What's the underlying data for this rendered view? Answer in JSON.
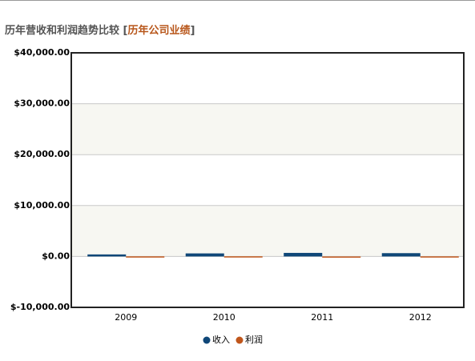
{
  "chart_data": {
    "type": "bar",
    "title": "历年营收和利润趋势比较",
    "title_link": "历年公司业绩",
    "categories": [
      "2009",
      "2010",
      "2011",
      "2012"
    ],
    "series": [
      {
        "name": "收入",
        "color": "#0f4778",
        "values": [
          400,
          600,
          700,
          650
        ]
      },
      {
        "name": "利润",
        "color": "#c0561b",
        "values": [
          20,
          30,
          -60,
          20
        ]
      }
    ],
    "ylim": [
      -10000,
      40000
    ],
    "yticks": [
      {
        "value": -10000,
        "label": "$-10,000.00"
      },
      {
        "value": 0,
        "label": "$0.00"
      },
      {
        "value": 10000,
        "label": "$10,000.00"
      },
      {
        "value": 20000,
        "label": "$20,000.00"
      },
      {
        "value": 30000,
        "label": "$30,000.00"
      },
      {
        "value": 40000,
        "label": "$40,000.00"
      }
    ],
    "grid": true,
    "band_color": "#f7f7f2",
    "legend": "bottom"
  }
}
